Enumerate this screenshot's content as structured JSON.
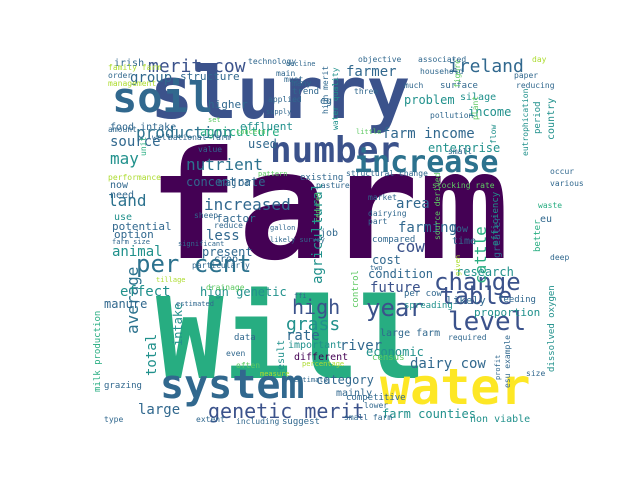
{
  "palette": {
    "dark_purple": "#440154",
    "indigo": "#3b528b",
    "slate": "#31688e",
    "teal_blue": "#2c728e",
    "teal": "#21918c",
    "green": "#27ad81",
    "light_green": "#5ec962",
    "lime": "#addc30",
    "yellow": "#fde725"
  },
  "word_cloud": {
    "words": [
      {
        "text": "farm",
        "color": "dark_purple"
      },
      {
        "text": "slurry",
        "color": "indigo"
      },
      {
        "text": "Will",
        "color": "green"
      },
      {
        "text": "soil",
        "color": "slate"
      },
      {
        "text": "water",
        "color": "yellow"
      },
      {
        "text": "system",
        "color": "slate"
      },
      {
        "text": "number",
        "color": "indigo"
      },
      {
        "text": "increase",
        "color": "teal_blue"
      },
      {
        "text": "per cent",
        "color": "teal_blue"
      },
      {
        "text": "change",
        "color": "indigo"
      },
      {
        "text": "level",
        "color": "indigo"
      },
      {
        "text": "table",
        "color": "indigo"
      },
      {
        "text": "year",
        "color": "indigo"
      },
      {
        "text": "genetic merit",
        "color": "indigo"
      },
      {
        "text": "merit cow",
        "color": "indigo"
      },
      {
        "text": "ireland",
        "color": "slate"
      },
      {
        "text": "production",
        "color": "teal_blue"
      },
      {
        "text": "nutrient",
        "color": "teal_blue"
      },
      {
        "text": "land",
        "color": "teal_blue"
      },
      {
        "text": "increased",
        "color": "slate"
      },
      {
        "text": "average",
        "color": "teal_blue"
      },
      {
        "text": "high",
        "color": "indigo"
      },
      {
        "text": "grass",
        "color": "teal"
      },
      {
        "text": "area",
        "color": "slate"
      },
      {
        "text": "cow",
        "color": "indigo"
      },
      {
        "text": "farmer",
        "color": "slate"
      },
      {
        "text": "farm income",
        "color": "slate"
      },
      {
        "text": "cattle",
        "color": "green"
      },
      {
        "text": "agricultural",
        "color": "teal"
      },
      {
        "text": "agriculture",
        "color": "green"
      },
      {
        "text": "effect",
        "color": "teal"
      },
      {
        "text": "river",
        "color": "slate"
      },
      {
        "text": "dairy cow",
        "color": "slate"
      },
      {
        "text": "total",
        "color": "teal"
      },
      {
        "text": "large",
        "color": "slate"
      },
      {
        "text": "animal",
        "color": "teal"
      },
      {
        "text": "farming",
        "color": "slate"
      },
      {
        "text": "may",
        "color": "teal"
      },
      {
        "text": "group",
        "color": "slate"
      },
      {
        "text": "less",
        "color": "slate"
      },
      {
        "text": "source",
        "color": "slate"
      },
      {
        "text": "rate",
        "color": "slate"
      },
      {
        "text": "future",
        "color": "indigo"
      },
      {
        "text": "farm counties",
        "color": "teal"
      },
      {
        "text": "used",
        "color": "slate"
      },
      {
        "text": "enterprise",
        "color": "teal"
      },
      {
        "text": "income",
        "color": "teal"
      },
      {
        "text": "problem",
        "color": "teal"
      },
      {
        "text": "research",
        "color": "teal"
      },
      {
        "text": "concentrate",
        "color": "slate"
      },
      {
        "text": "high genetic",
        "color": "teal"
      },
      {
        "text": "present",
        "color": "slate"
      },
      {
        "text": "cost",
        "color": "slate"
      },
      {
        "text": "condition",
        "color": "slate"
      },
      {
        "text": "economic",
        "color": "teal"
      },
      {
        "text": "intake",
        "color": "teal"
      },
      {
        "text": "result",
        "color": "teal"
      },
      {
        "text": "category",
        "color": "slate"
      },
      {
        "text": "manure",
        "color": "slate"
      },
      {
        "text": "option",
        "color": "slate"
      },
      {
        "text": "potential",
        "color": "slate"
      },
      {
        "text": "factor",
        "color": "slate"
      },
      {
        "text": "structure",
        "color": "slate"
      },
      {
        "text": "higher",
        "color": "slate"
      },
      {
        "text": "effluent",
        "color": "teal"
      },
      {
        "text": "major",
        "color": "slate"
      },
      {
        "text": "proportion",
        "color": "teal"
      },
      {
        "text": "likely",
        "color": "slate"
      },
      {
        "text": "different",
        "color": "dark_purple"
      },
      {
        "text": "mainly",
        "color": "slate"
      },
      {
        "text": "important",
        "color": "teal"
      },
      {
        "text": "data",
        "color": "slate"
      },
      {
        "text": "grazing",
        "color": "slate"
      },
      {
        "text": "non viable",
        "color": "teal"
      },
      {
        "text": "milk production",
        "color": "green"
      },
      {
        "text": "dissolved oxygen",
        "color": "teal"
      },
      {
        "text": "feeding",
        "color": "slate"
      },
      {
        "text": "compared",
        "color": "slate"
      },
      {
        "text": "surface",
        "color": "slate"
      },
      {
        "text": "silage",
        "color": "teal"
      },
      {
        "text": "country",
        "color": "teal"
      },
      {
        "text": "period",
        "color": "teal"
      },
      {
        "text": "spreading",
        "color": "teal"
      },
      {
        "text": "per cow",
        "color": "slate"
      },
      {
        "text": "crop",
        "color": "slate"
      },
      {
        "text": "job",
        "color": "slate"
      },
      {
        "text": "low",
        "color": "slate"
      },
      {
        "text": "time",
        "color": "slate"
      },
      {
        "text": "trend",
        "color": "slate"
      },
      {
        "text": "eg",
        "color": "slate"
      },
      {
        "text": "food intake",
        "color": "slate"
      },
      {
        "text": "irish",
        "color": "slate"
      },
      {
        "text": "need",
        "color": "slate"
      },
      {
        "text": "use",
        "color": "teal"
      },
      {
        "text": "now",
        "color": "slate"
      },
      {
        "text": "high merit",
        "color": "slate"
      },
      {
        "text": "water quality",
        "color": "teal"
      },
      {
        "text": "existing",
        "color": "slate"
      },
      {
        "text": "structural change",
        "color": "slate"
      },
      {
        "text": "pasture",
        "color": "slate"
      },
      {
        "text": "greater",
        "color": "slate"
      },
      {
        "text": "efficiency",
        "color": "teal"
      },
      {
        "text": "eu",
        "color": "slate"
      },
      {
        "text": "better",
        "color": "green"
      },
      {
        "text": "waste",
        "color": "green"
      },
      {
        "text": "much",
        "color": "slate"
      },
      {
        "text": "figure",
        "color": "light_green"
      },
      {
        "text": "pollution",
        "color": "slate"
      },
      {
        "text": "household",
        "color": "slate"
      },
      {
        "text": "many",
        "color": "slate"
      },
      {
        "text": "main",
        "color": "slate"
      },
      {
        "text": "applied",
        "color": "slate"
      },
      {
        "text": "must",
        "color": "slate"
      },
      {
        "text": "plant",
        "color": "light_green"
      },
      {
        "text": "flow",
        "color": "teal"
      },
      {
        "text": "reducing",
        "color": "slate"
      },
      {
        "text": "objective",
        "color": "slate"
      },
      {
        "text": "associated",
        "color": "slate"
      },
      {
        "text": "day",
        "color": "lime"
      },
      {
        "text": "paper",
        "color": "slate"
      },
      {
        "text": "technology",
        "color": "slate"
      },
      {
        "text": "three",
        "color": "slate"
      },
      {
        "text": "value",
        "color": "slate"
      },
      {
        "text": "unit",
        "color": "green"
      },
      {
        "text": "order",
        "color": "slate"
      },
      {
        "text": "management",
        "color": "lime"
      },
      {
        "text": "family farm",
        "color": "lime"
      },
      {
        "text": "well",
        "color": "slate"
      },
      {
        "text": "amount",
        "color": "slate"
      },
      {
        "text": "national farm",
        "color": "slate"
      },
      {
        "text": "performance",
        "color": "lime"
      },
      {
        "text": "farm size",
        "color": "slate"
      },
      {
        "text": "significant",
        "color": "slate"
      },
      {
        "text": "particularly",
        "color": "slate"
      },
      {
        "text": "reduce",
        "color": "slate"
      },
      {
        "text": "market",
        "color": "slate"
      },
      {
        "text": "sheep",
        "color": "slate"
      },
      {
        "text": "dairying",
        "color": "slate"
      },
      {
        "text": "part",
        "color": "slate"
      },
      {
        "text": "deep",
        "color": "slate"
      },
      {
        "text": "occur",
        "color": "slate"
      },
      {
        "text": "various",
        "color": "slate"
      },
      {
        "text": "small",
        "color": "slate"
      },
      {
        "text": "eutrophication",
        "color": "teal"
      },
      {
        "text": "control",
        "color": "light_green"
      },
      {
        "text": "large farm",
        "color": "slate"
      },
      {
        "text": "census",
        "color": "light_green"
      },
      {
        "text": "suggest",
        "color": "slate"
      },
      {
        "text": "small farm",
        "color": "slate"
      },
      {
        "text": "competitive",
        "color": "slate"
      },
      {
        "text": "lower",
        "color": "slate"
      },
      {
        "text": "type",
        "color": "slate"
      },
      {
        "text": "extent",
        "color": "slate"
      },
      {
        "text": "including",
        "color": "slate"
      },
      {
        "text": "often",
        "color": "light_green"
      },
      {
        "text": "even",
        "color": "slate"
      },
      {
        "text": "profit",
        "color": "slate"
      },
      {
        "text": "measure",
        "color": "lime"
      },
      {
        "text": "estimate",
        "color": "slate"
      },
      {
        "text": "size",
        "color": "slate"
      },
      {
        "text": "esu example",
        "color": "slate"
      },
      {
        "text": "required",
        "color": "slate"
      },
      {
        "text": "drainage",
        "color": "light_green"
      },
      {
        "text": "ffi",
        "color": "slate"
      },
      {
        "text": "tillage",
        "color": "lime"
      },
      {
        "text": "percentage",
        "color": "lime"
      },
      {
        "text": "two",
        "color": "slate"
      },
      {
        "text": "given",
        "color": "lime"
      },
      {
        "text": "source derived",
        "color": "light_green"
      },
      {
        "text": "reduced",
        "color": "light_green"
      },
      {
        "text": "gallon",
        "color": "slate"
      },
      {
        "text": "likely survey",
        "color": "slate"
      },
      {
        "text": "little",
        "color": "light_green"
      },
      {
        "text": "set",
        "color": "light_green"
      },
      {
        "text": "decline",
        "color": "slate"
      },
      {
        "text": "supply",
        "color": "slate"
      },
      {
        "text": "concern",
        "color": "light_green"
      },
      {
        "text": "pattern",
        "color": "light_green"
      },
      {
        "text": "estimated",
        "color": "slate"
      },
      {
        "text": "stocking rate",
        "color": "light_green"
      },
      {
        "text": "see",
        "color": "lime"
      },
      {
        "text": "cow",
        "color": "slate"
      }
    ]
  }
}
